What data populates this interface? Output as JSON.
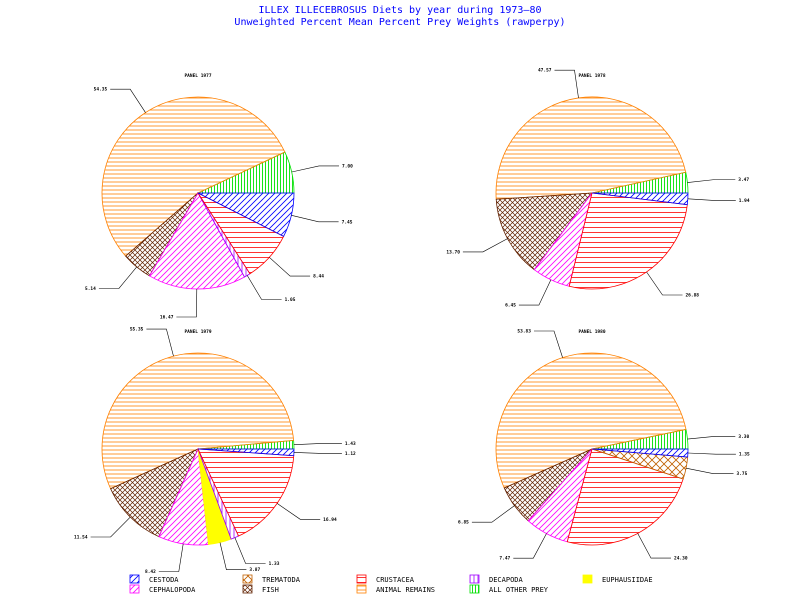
{
  "chart_data": {
    "type": "pie",
    "title": "ILLEX ILLECEBROSUS Diets by year during 1973—80",
    "subtitle": "Unweighted Percent Mean Percent Prey  Weights (rawperpy)",
    "categories": [
      "CESTODA",
      "TREMATODA",
      "CRUSTACEA",
      "DECAPODA",
      "EUPHAUSIIDAE",
      "CEPHALOPODA",
      "FISH",
      "ANIMAL REMAINS",
      "ALL OTHER PREY"
    ],
    "colors": {
      "CESTODA": "#0000ff",
      "TREMATODA": "#c06000",
      "CRUSTACEA": "#ff0000",
      "DECAPODA": "#a000ff",
      "EUPHAUSIIDAE": "#ffff00",
      "CEPHALOPODA": "#ff00ff",
      "FISH": "#602000",
      "ANIMAL REMAINS": "#ff8000",
      "ALL OTHER PREY": "#00e000"
    },
    "pies": [
      {
        "name": "PANEL 1977",
        "slices": [
          {
            "category": "ALL OTHER PREY",
            "value": 7.0,
            "label": "7.00"
          },
          {
            "category": "ANIMAL REMAINS",
            "value": 54.35,
            "label": "54.35"
          },
          {
            "category": "FISH",
            "value": 5.14,
            "label": "5.14"
          },
          {
            "category": "CEPHALOPODA",
            "value": 16.47,
            "label": "16.47"
          },
          {
            "category": "DECAPODA",
            "value": 1.05,
            "label": "1.05"
          },
          {
            "category": "CRUSTACEA",
            "value": 8.44,
            "label": "8.44"
          },
          {
            "category": "CESTODA",
            "value": 7.45,
            "label": "7.45"
          }
        ]
      },
      {
        "name": "PANEL 1978",
        "slices": [
          {
            "category": "ALL OTHER PREY",
            "value": 3.47,
            "label": "3.47"
          },
          {
            "category": "ANIMAL REMAINS",
            "value": 47.57,
            "label": "47.57"
          },
          {
            "category": "FISH",
            "value": 13.7,
            "label": "13.70"
          },
          {
            "category": "CEPHALOPODA",
            "value": 6.45,
            "label": "6.45"
          },
          {
            "category": "CRUSTACEA",
            "value": 26.88,
            "label": "26.88"
          },
          {
            "category": "CESTODA",
            "value": 1.94,
            "label": "1.94"
          }
        ]
      },
      {
        "name": "PANEL 1979",
        "slices": [
          {
            "category": "ALL OTHER PREY",
            "value": 1.43,
            "label": "1.43"
          },
          {
            "category": "ANIMAL REMAINS",
            "value": 55.35,
            "label": "55.35"
          },
          {
            "category": "FISH",
            "value": 11.54,
            "label": "11.54"
          },
          {
            "category": "CEPHALOPODA",
            "value": 8.42,
            "label": "8.42"
          },
          {
            "category": "EUPHAUSIIDAE",
            "value": 3.87,
            "label": "3.87"
          },
          {
            "category": "DECAPODA",
            "value": 1.33,
            "label": "1.33"
          },
          {
            "category": "CRUSTACEA",
            "value": 16.94,
            "label": "16.94"
          },
          {
            "category": "CESTODA",
            "value": 1.12,
            "label": "1.12"
          }
        ]
      },
      {
        "name": "PANEL 1980",
        "slices": [
          {
            "category": "ALL OTHER PREY",
            "value": 3.3,
            "label": "3.30"
          },
          {
            "category": "ANIMAL REMAINS",
            "value": 53.83,
            "label": "53.83"
          },
          {
            "category": "FISH",
            "value": 6.85,
            "label": "6.85"
          },
          {
            "category": "CEPHALOPODA",
            "value": 7.47,
            "label": "7.47"
          },
          {
            "category": "CRUSTACEA",
            "value": 24.3,
            "label": "24.30"
          },
          {
            "category": "TREMATODA",
            "value": 3.75,
            "label": "3.75"
          },
          {
            "category": "CESTODA",
            "value": 1.35,
            "label": "1.35"
          }
        ]
      }
    ],
    "legend_position": "bottom"
  }
}
